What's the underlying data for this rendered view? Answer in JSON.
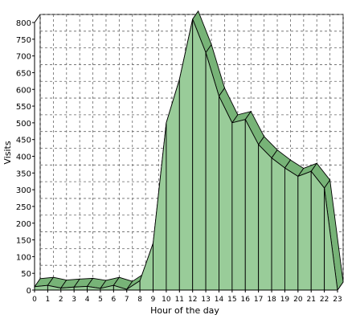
{
  "chart_data": {
    "type": "area",
    "title": "",
    "xlabel": "Hour of the day",
    "ylabel": "Visits",
    "x": [
      0,
      1,
      2,
      3,
      4,
      5,
      6,
      7,
      8,
      9,
      10,
      11,
      12,
      13,
      14,
      15,
      16,
      17,
      18,
      19,
      20,
      21,
      22,
      23
    ],
    "series": [
      {
        "values": [
          10,
          14,
          6,
          9,
          11,
          5,
          14,
          2,
          28,
          140,
          500,
          630,
          810,
          710,
          580,
          500,
          510,
          435,
          395,
          365,
          340,
          355,
          305,
          0
        ]
      }
    ],
    "xlim": [
      0,
      23
    ],
    "ylim": [
      0,
      800
    ],
    "yticks": [
      0,
      50,
      100,
      150,
      200,
      250,
      300,
      350,
      400,
      450,
      500,
      550,
      600,
      650,
      700,
      750,
      800
    ],
    "grid": true,
    "grid_style": "dashed",
    "style": "3d",
    "fill_color": "#99cc99",
    "stroke_color": "#000000"
  }
}
